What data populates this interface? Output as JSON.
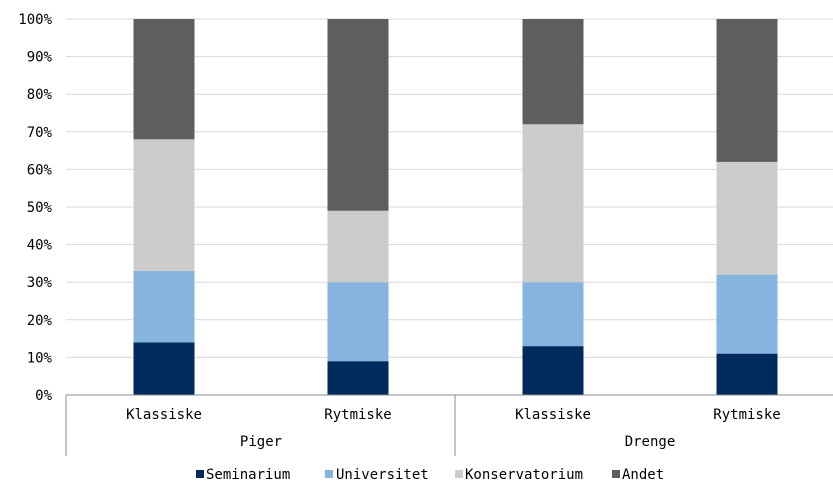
{
  "chart_data": {
    "type": "bar",
    "stacked": true,
    "percent_stacked": true,
    "title": "",
    "xlabel": "",
    "ylabel": "",
    "ylim": [
      0,
      100
    ],
    "y_ticks": [
      "0%",
      "10%",
      "20%",
      "30%",
      "40%",
      "50%",
      "60%",
      "70%",
      "80%",
      "90%",
      "100%"
    ],
    "categories": [
      "Klassiske",
      "Rytmiske",
      "Klassiske",
      "Rytmiske"
    ],
    "groups": [
      {
        "label": "Piger",
        "categories": [
          0,
          1
        ]
      },
      {
        "label": "Drenge",
        "categories": [
          2,
          3
        ]
      }
    ],
    "series": [
      {
        "name": "Seminarium",
        "color": "#002b5c",
        "values": [
          14,
          9,
          13,
          11
        ]
      },
      {
        "name": "Universitet",
        "color": "#85b4df",
        "values": [
          19,
          21,
          17,
          21
        ]
      },
      {
        "name": "Konservatorium",
        "color": "#cccccc",
        "values": [
          35,
          19,
          42,
          30
        ]
      },
      {
        "name": "Andet",
        "color": "#5e5e5e",
        "values": [
          32,
          51,
          28,
          38
        ]
      }
    ],
    "grid": true,
    "legend_position": "bottom"
  }
}
